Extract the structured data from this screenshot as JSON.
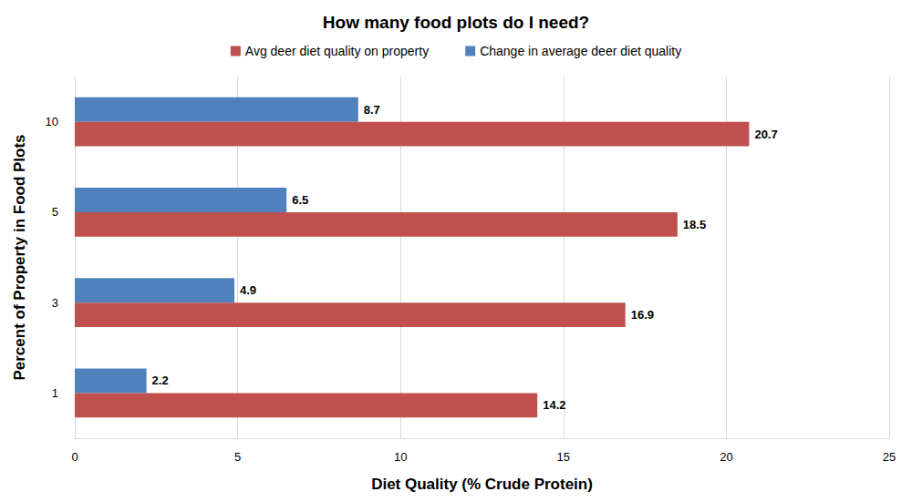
{
  "chart_data": {
    "type": "bar",
    "orientation": "horizontal",
    "title": "How many food plots do I need?",
    "x_label": "Diet Quality (% Crude Protein)",
    "y_label": "Percent of Property in Food Plots",
    "categories": [
      "1",
      "3",
      "5",
      "10"
    ],
    "series": [
      {
        "name": "Avg deer diet quality on property",
        "color": "#c0504d",
        "values": [
          14.2,
          16.9,
          18.5,
          20.7
        ]
      },
      {
        "name": "Change in average deer diet quality",
        "color": "#4f81bd",
        "values": [
          2.2,
          4.9,
          6.5,
          8.7
        ]
      }
    ],
    "xlim": [
      0,
      25
    ],
    "xticks": [
      0,
      5,
      10,
      15,
      20,
      25
    ],
    "grid": true,
    "legend": "top",
    "data_labels": true
  }
}
